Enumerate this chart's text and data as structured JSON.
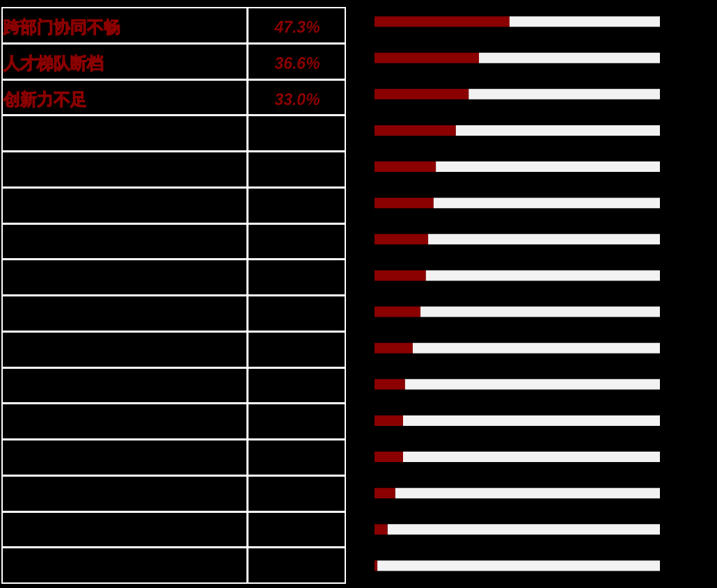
{
  "chart_data": {
    "type": "bar",
    "orientation": "horizontal",
    "stacked": true,
    "categories": [
      "跨部门协同不畅",
      "人才梯队断档",
      "创新力不足",
      null,
      null,
      null,
      null,
      null,
      null,
      null,
      null,
      null,
      null,
      null,
      null,
      null
    ],
    "series": [
      {
        "color": "#8b0000",
        "values": [
          47.3,
          36.6,
          33.0,
          28.5,
          21.5,
          20.7,
          18.8,
          18.0,
          16.1,
          13.4,
          10.7,
          10.0,
          10.0,
          7.3,
          4.6,
          1.0
        ],
        "value_labels": [
          "47.3%",
          "36.6%",
          "33.0%",
          null,
          null,
          null,
          null,
          null,
          null,
          null,
          null,
          null,
          null,
          null,
          null,
          null
        ]
      },
      {
        "color": "#f2f2f2",
        "values": [
          52.7,
          63.4,
          67.0,
          71.5,
          78.5,
          79.3,
          81.2,
          82.0,
          83.9,
          86.6,
          89.3,
          90.0,
          90.0,
          92.7,
          95.4,
          99.0
        ]
      }
    ],
    "xlim": [
      0,
      100
    ],
    "tick_labels": "y"
  }
}
